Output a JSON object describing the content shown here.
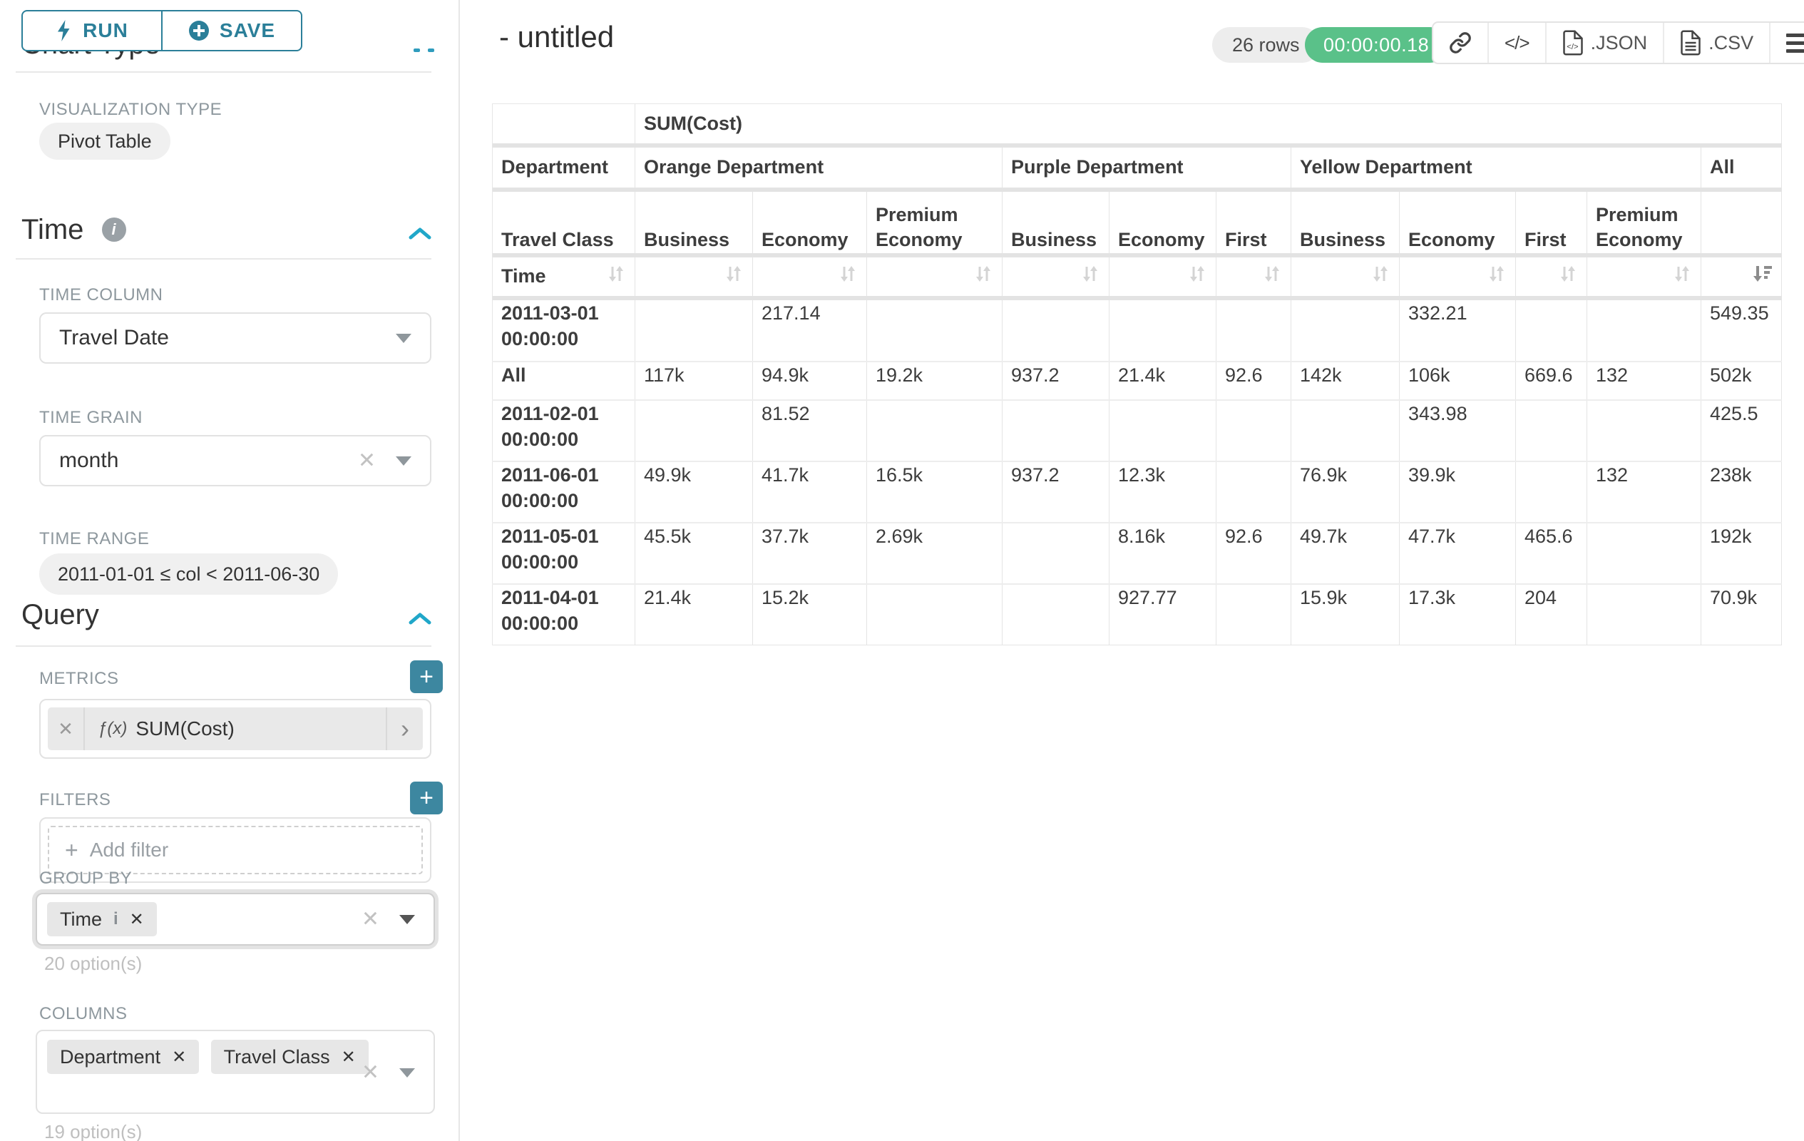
{
  "colors": {
    "accent_teal": "#2b7f99",
    "plus_button_teal": "#3d87a0",
    "timer_green": "#5ac189",
    "chevron_blue": "#20a7c9"
  },
  "sidebar": {
    "run_label": "RUN",
    "save_label": "SAVE",
    "chart_type_heading": "Chart Type",
    "visualization": {
      "label": "VISUALIZATION TYPE",
      "value": "Pivot Table"
    },
    "time_section": {
      "title": "Time",
      "time_column_label": "TIME COLUMN",
      "time_column_value": "Travel Date",
      "time_grain_label": "TIME GRAIN",
      "time_grain_value": "month",
      "time_range_label": "TIME RANGE",
      "time_range_value": "2011-01-01 ≤ col < 2011-06-30"
    },
    "query_section": {
      "title": "Query",
      "metrics_label": "METRICS",
      "metric_fx_prefix": "ƒ(x)",
      "metric_value": "SUM(Cost)",
      "filters_label": "FILTERS",
      "add_filter_label": "Add filter",
      "group_by_label": "GROUP BY",
      "group_by_tags": [
        "Time"
      ],
      "group_by_hint": "20 option(s)",
      "columns_label": "COLUMNS",
      "columns_tags": [
        "Department",
        "Travel Class"
      ],
      "columns_hint": "19 option(s)"
    },
    "icons": [
      "lightning-icon",
      "plus-circle-icon",
      "info-icon",
      "chevron-up-icon",
      "caret-down-icon",
      "clear-x-icon",
      "add-plus-icon"
    ]
  },
  "header": {
    "title": "- untitled",
    "rows_badge": "26 rows",
    "timer_value": "00:00:00.18",
    "export_json_label": ".JSON",
    "export_csv_label": ".CSV",
    "icons": [
      "link-icon",
      "code-icon",
      "json-file-icon",
      "csv-file-icon",
      "menu-icon"
    ]
  },
  "table": {
    "metric_header": "SUM(Cost)",
    "department_label": "Department",
    "travel_class_label": "Travel Class",
    "time_label": "Time",
    "groups": [
      {
        "name": "Orange Department",
        "cols": [
          "Business",
          "Economy",
          "Premium Economy"
        ]
      },
      {
        "name": "Purple Department",
        "cols": [
          "Business",
          "Economy",
          "First"
        ]
      },
      {
        "name": "Yellow Department",
        "cols": [
          "Business",
          "Economy",
          "First",
          "Premium Economy"
        ]
      },
      {
        "name": "All",
        "cols": [
          ""
        ]
      }
    ],
    "sort_active_index": 10,
    "rows": [
      {
        "label": "2011-03-01 00:00:00",
        "values": [
          "",
          "217.14",
          "",
          "",
          "",
          "",
          "",
          "332.21",
          "",
          "",
          "549.35"
        ]
      },
      {
        "label": "All",
        "values": [
          "117k",
          "94.9k",
          "19.2k",
          "937.2",
          "21.4k",
          "92.6",
          "142k",
          "106k",
          "669.6",
          "132",
          "502k"
        ]
      },
      {
        "label": "2011-02-01 00:00:00",
        "values": [
          "",
          "81.52",
          "",
          "",
          "",
          "",
          "",
          "343.98",
          "",
          "",
          "425.5"
        ]
      },
      {
        "label": "2011-06-01 00:00:00",
        "values": [
          "49.9k",
          "41.7k",
          "16.5k",
          "937.2",
          "12.3k",
          "",
          "76.9k",
          "39.9k",
          "",
          "132",
          "238k"
        ]
      },
      {
        "label": "2011-05-01 00:00:00",
        "values": [
          "45.5k",
          "37.7k",
          "2.69k",
          "",
          "8.16k",
          "92.6",
          "49.7k",
          "47.7k",
          "465.6",
          "",
          "192k"
        ]
      },
      {
        "label": "2011-04-01 00:00:00",
        "values": [
          "21.4k",
          "15.2k",
          "",
          "",
          "927.77",
          "",
          "15.9k",
          "17.3k",
          "204",
          "",
          "70.9k"
        ]
      }
    ]
  }
}
